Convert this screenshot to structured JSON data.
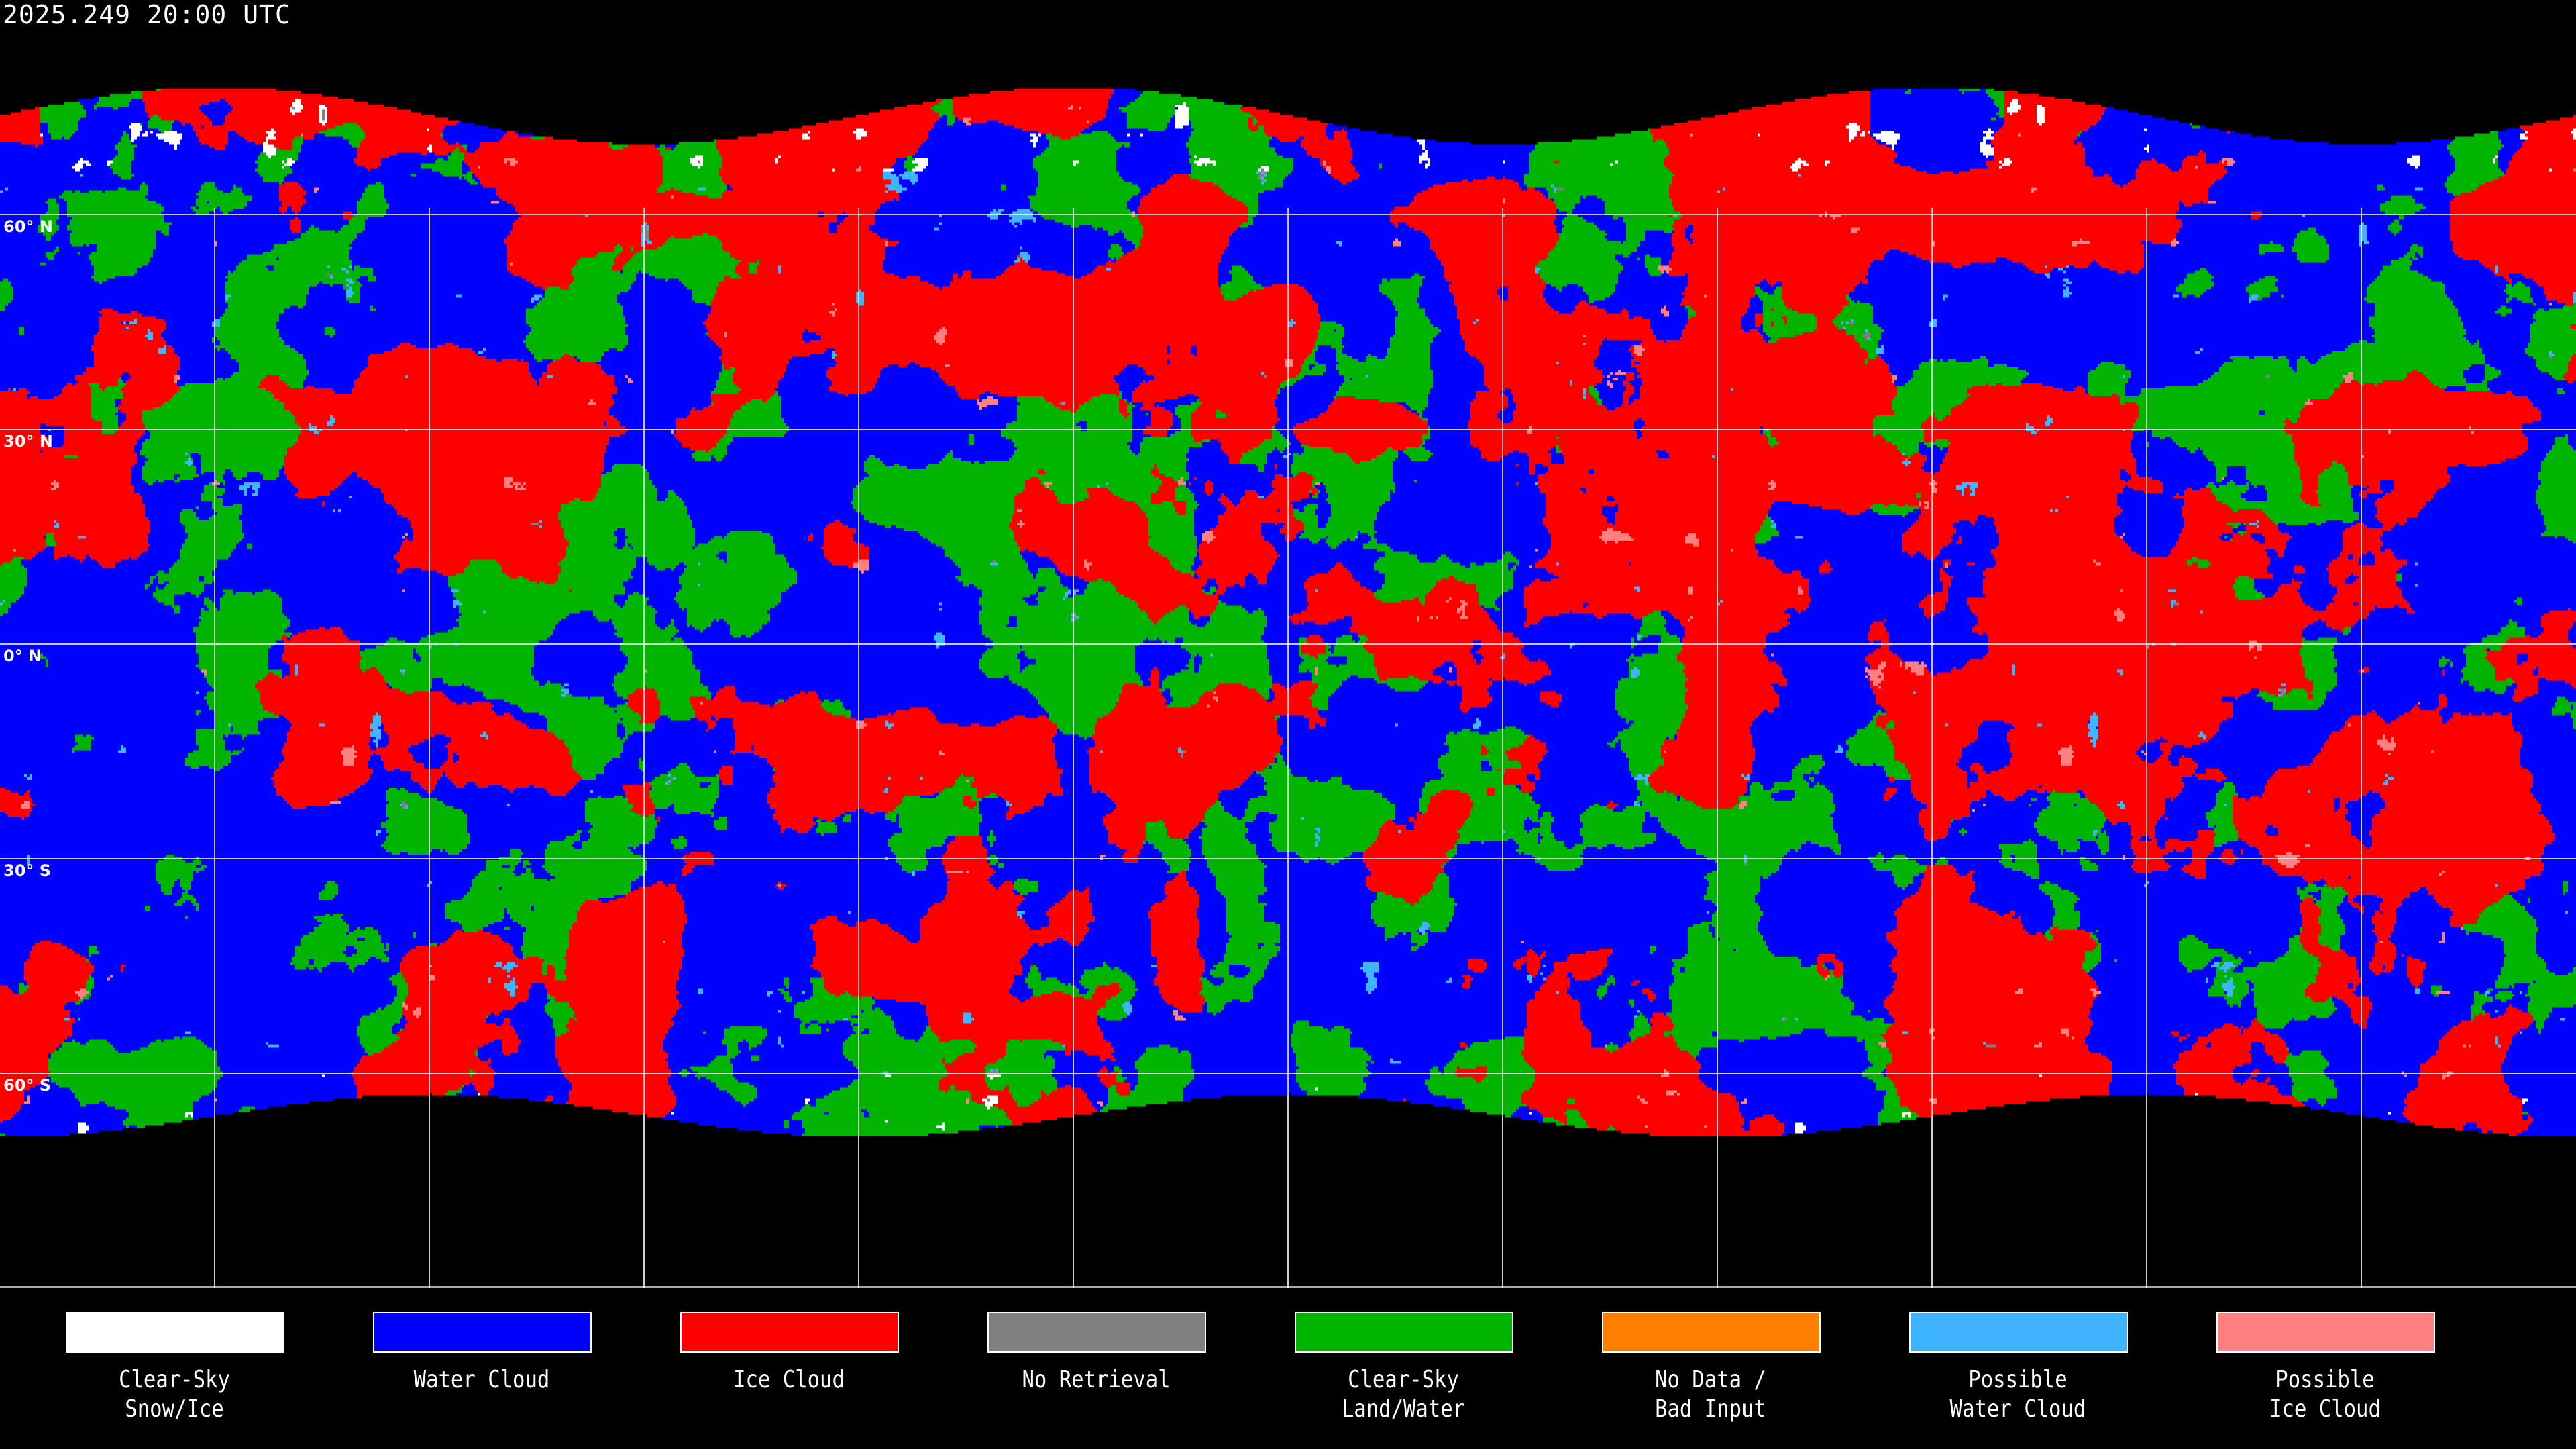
{
  "header": {
    "title": "2025.249 20:00 UTC"
  },
  "map": {
    "projection": "equirectangular",
    "grid_spacing_degrees": 30,
    "lat_labels": [
      {
        "lat": 60,
        "label": "60° N"
      },
      {
        "lat": 30,
        "label": "30° N"
      },
      {
        "lat": 0,
        "label": "0° N"
      },
      {
        "lat": -30,
        "label": "30° S"
      },
      {
        "lat": -60,
        "label": "60° S"
      }
    ],
    "background_color": "#000000",
    "gridline_color": "#ffffff"
  },
  "legend": {
    "items": [
      {
        "label": "Clear-Sky\nSnow/Ice",
        "color": "#ffffff"
      },
      {
        "label": "Water Cloud",
        "color": "#0000ff"
      },
      {
        "label": "Ice Cloud",
        "color": "#ff0000"
      },
      {
        "label": "No Retrieval",
        "color": "#808080"
      },
      {
        "label": "Clear-Sky\nLand/Water",
        "color": "#00b400"
      },
      {
        "label": "No Data /\nBad Input",
        "color": "#ff8000"
      },
      {
        "label": "Possible\nWater Cloud",
        "color": "#40b4ff"
      },
      {
        "label": "Possible\nIce Cloud",
        "color": "#ff8080"
      }
    ]
  }
}
